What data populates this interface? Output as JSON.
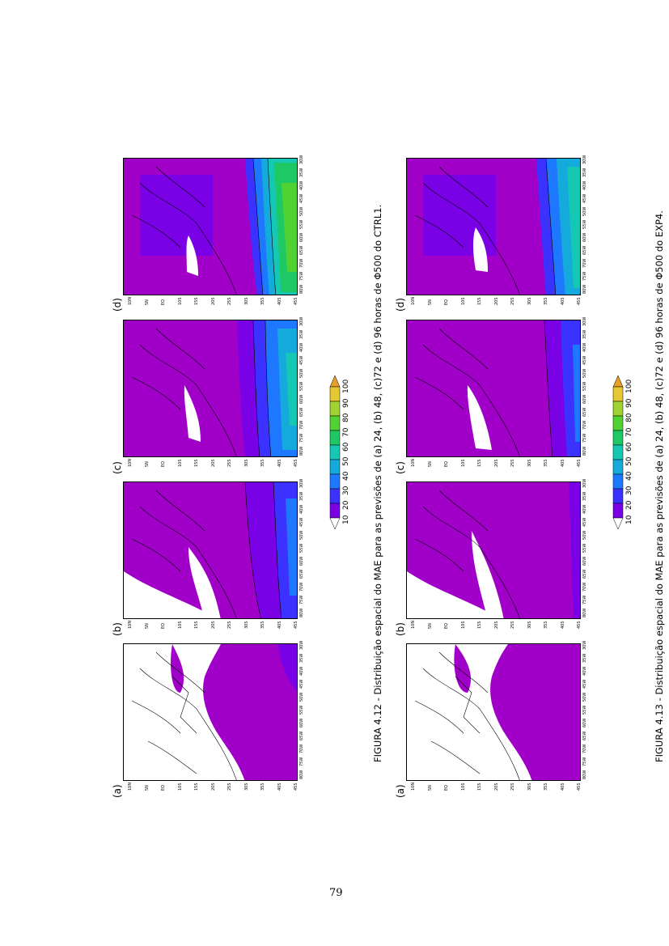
{
  "figures": [
    {
      "id": "4.12",
      "caption": "FIGURA 4.12 - Distribuição espacial do MAE para as previsões de (a) 24, (b) 48, (c)72 e (d) 96 horas de Φ500 do CTRL1.",
      "panels": [
        {
          "label": "(a)"
        },
        {
          "label": "(b)"
        },
        {
          "label": "(c)"
        },
        {
          "label": "(d)"
        }
      ]
    },
    {
      "id": "4.13",
      "caption": "FIGURA 4.13 - Distribuição espacial do MAE para as previsões de (a) 24, (b) 48, (c)72 e (d) 96 horas de Φ500 do EXP4.",
      "panels": [
        {
          "label": "(a)"
        },
        {
          "label": "(b)"
        },
        {
          "label": "(c)"
        },
        {
          "label": "(d)"
        }
      ]
    }
  ],
  "colorbar": {
    "labels": [
      "10",
      "20",
      "30",
      "40",
      "50",
      "60",
      "70",
      "80",
      "90",
      "100"
    ],
    "colors": [
      "#a000c8",
      "#7a00e6",
      "#3c32ff",
      "#1e78ff",
      "#14aadc",
      "#14c8b4",
      "#1ec864",
      "#50d232",
      "#a0d232",
      "#e6c832",
      "#e6a028"
    ]
  },
  "axis_ticks": {
    "lat": [
      "10N",
      "5N",
      "EQ",
      "10S",
      "15S",
      "20S",
      "25S",
      "30S",
      "35S",
      "40S",
      "45S"
    ],
    "lon": [
      "80W",
      "75W",
      "70W",
      "65W",
      "60W",
      "55W",
      "50W",
      "45W",
      "40W",
      "35W",
      "30W"
    ]
  },
  "page_number": "79"
}
